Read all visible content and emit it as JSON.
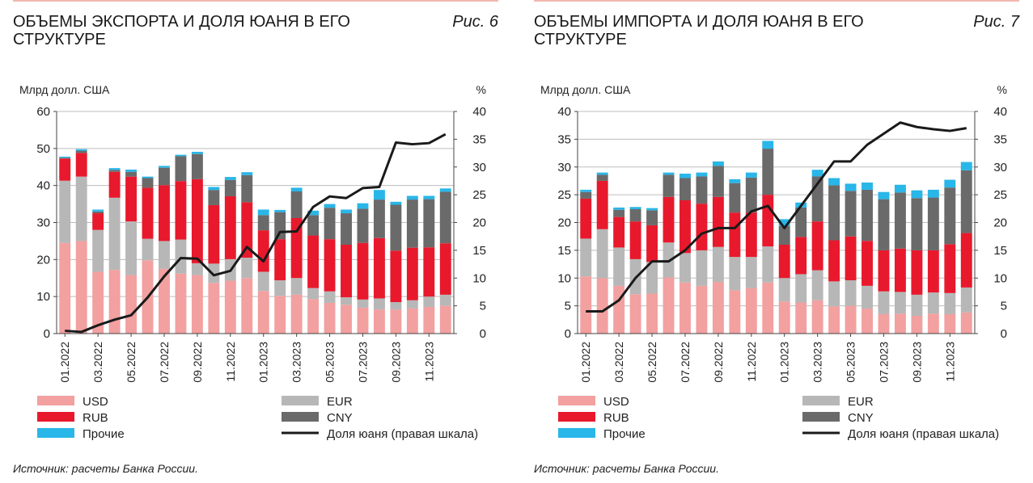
{
  "charts": [
    {
      "title": "ОБЪЕМЫ ЭКСПОРТА И ДОЛЯ ЮАНЯ В ЕГО СТРУКТУРЕ",
      "figure_label": "Рис. 6",
      "source": "Источник: расчеты Банка России.",
      "left_axis_label": "Млрд долл. США",
      "right_axis_label": "%",
      "legend": {
        "usd": "USD",
        "eur": "EUR",
        "rub": "RUB",
        "cny": "CNY",
        "other": "Прочие",
        "line": "Доля юаня (правая шкала)"
      }
    },
    {
      "title": "ОБЪЕМЫ ИМПОРТА И ДОЛЯ ЮАНЯ В ЕГО СТРУКТУРЕ",
      "figure_label": "Рис. 7",
      "source": "Источник: расчеты Банка России.",
      "left_axis_label": "Млрд долл. США",
      "right_axis_label": "%",
      "legend": {
        "usd": "USD",
        "eur": "EUR",
        "rub": "RUB",
        "cny": "CNY",
        "other": "Прочие",
        "line": "Доля юаня (правая шкала)"
      }
    }
  ],
  "chart_data": [
    {
      "type": "bar",
      "stacked": true,
      "title": "ОБЪЕМЫ ЭКСПОРТА И ДОЛЯ ЮАНЯ В ЕГО СТРУКТУРЕ",
      "ylabel": "Млрд долл. США",
      "y2label": "%",
      "ylim": [
        0,
        60
      ],
      "y2lim": [
        0,
        40
      ],
      "yticks": [
        0,
        10,
        20,
        30,
        40,
        50,
        60
      ],
      "y2ticks": [
        0,
        5,
        10,
        15,
        20,
        25,
        30,
        35,
        40
      ],
      "xtick_labels": [
        "01.2022",
        "03.2022",
        "05.2022",
        "07.2022",
        "09.2022",
        "11.2022",
        "01.2023",
        "03.2023",
        "05.2023",
        "07.2023",
        "09.2023",
        "11.2023"
      ],
      "categories": [
        "01.2022",
        "02.2022",
        "03.2022",
        "04.2022",
        "05.2022",
        "06.2022",
        "07.2022",
        "08.2022",
        "09.2022",
        "10.2022",
        "11.2022",
        "12.2022",
        "01.2023",
        "02.2023",
        "03.2023",
        "04.2023",
        "05.2023",
        "06.2023",
        "07.2023",
        "08.2023",
        "09.2023",
        "10.2023",
        "11.2023",
        "12.2023"
      ],
      "series": [
        {
          "name": "USD",
          "color": "#f2a0a0",
          "values": [
            24.5,
            25,
            16.7,
            17.2,
            15.8,
            19.8,
            17.5,
            16.2,
            15.8,
            13.7,
            14.3,
            15,
            11.5,
            10.2,
            10.5,
            9.3,
            8.3,
            7.8,
            7,
            6.5,
            6.5,
            6.8,
            7.2,
            7.5
          ]
        },
        {
          "name": "EUR",
          "color": "#b7b7b7",
          "values": [
            16.8,
            17.4,
            11.3,
            19.5,
            14.5,
            5.8,
            7.5,
            9.2,
            3.2,
            5.2,
            5.8,
            5.5,
            5.2,
            4.2,
            4.5,
            3,
            3.1,
            2,
            2.2,
            3,
            2,
            2.2,
            2.8,
            3
          ]
        },
        {
          "name": "RUB",
          "color": "#e8192c",
          "values": [
            6,
            6.4,
            4.5,
            7,
            12.1,
            13.8,
            15.1,
            15.8,
            22.7,
            15.8,
            17,
            15,
            11.2,
            11.1,
            16.2,
            14.2,
            14.1,
            14.2,
            15.3,
            16.3,
            13.9,
            14.2,
            13.3,
            13.9
          ]
        },
        {
          "name": "CNY",
          "color": "#6a6a6a",
          "values": [
            0.2,
            0.6,
            0.5,
            0.5,
            1.3,
            2.6,
            4.7,
            6.7,
            6.8,
            4.1,
            4.4,
            7.3,
            4.1,
            7.3,
            7.2,
            5.5,
            8.5,
            8.5,
            9.2,
            10.4,
            12.4,
            13,
            13,
            13.9
          ]
        },
        {
          "name": "Прочие",
          "color": "#29b6e8",
          "values": [
            0.3,
            0.4,
            0.5,
            0.5,
            0.6,
            0.4,
            0.5,
            0.4,
            0.6,
            0.8,
            0.8,
            0.8,
            1.5,
            0.6,
            1,
            1.2,
            1,
            1,
            1.5,
            2.6,
            0.8,
            1,
            0.9,
            0.9
          ]
        }
      ],
      "line": {
        "name": "Доля юаня (правая шкала)",
        "color": "#1a1a1a",
        "axis": "right",
        "values": [
          0.5,
          0.3,
          1.5,
          2.5,
          3.3,
          6.5,
          10.3,
          13.6,
          13.5,
          10.5,
          11.3,
          15.6,
          13,
          18.3,
          18.4,
          22.8,
          24.7,
          24.4,
          26.2,
          26.4,
          34.4,
          34.1,
          34.3,
          35.9
        ]
      }
    },
    {
      "type": "bar",
      "stacked": true,
      "title": "ОБЪЕМЫ ИМПОРТА И ДОЛЯ ЮАНЯ В ЕГО СТРУКТУРЕ",
      "ylabel": "Млрд долл. США",
      "y2label": "%",
      "ylim": [
        0,
        40
      ],
      "y2lim": [
        0,
        40
      ],
      "yticks": [
        0,
        5,
        10,
        15,
        20,
        25,
        30,
        35,
        40
      ],
      "y2ticks": [
        0,
        5,
        10,
        15,
        20,
        25,
        30,
        35,
        40
      ],
      "xtick_labels": [
        "01.2022",
        "03.2022",
        "05.2022",
        "07.2022",
        "09.2022",
        "11.2022",
        "01.2023",
        "03.2023",
        "05.2023",
        "07.2023",
        "09.2023",
        "11.2023"
      ],
      "categories": [
        "01.2022",
        "02.2022",
        "03.2022",
        "04.2022",
        "05.2022",
        "06.2022",
        "07.2022",
        "08.2022",
        "09.2022",
        "10.2022",
        "11.2022",
        "12.2022",
        "01.2023",
        "02.2023",
        "03.2023",
        "04.2023",
        "05.2023",
        "06.2023",
        "07.2023",
        "08.2023",
        "09.2023",
        "10.2023",
        "11.2023",
        "12.2023"
      ],
      "series": [
        {
          "name": "USD",
          "color": "#f2a0a0",
          "values": [
            10.3,
            10,
            8.6,
            7.1,
            7.2,
            10.1,
            9.2,
            8.6,
            9.3,
            7.8,
            8.2,
            9.2,
            5.8,
            5.6,
            6,
            4.9,
            5,
            4.5,
            3.5,
            3.6,
            3.2,
            3.6,
            3.5,
            3.8
          ]
        },
        {
          "name": "EUR",
          "color": "#b7b7b7",
          "values": [
            6.8,
            8.8,
            6.9,
            6.3,
            5.7,
            6.3,
            5.3,
            6.4,
            6.3,
            6,
            5.6,
            6.5,
            4.2,
            5.1,
            5.4,
            4.5,
            4.6,
            4.1,
            4.1,
            3.9,
            3.8,
            3.8,
            3.8,
            4.5
          ]
        },
        {
          "name": "RUB",
          "color": "#e8192c",
          "values": [
            7.2,
            8.7,
            5.5,
            6.8,
            6.6,
            8.2,
            9.5,
            8.4,
            9,
            8,
            8,
            9.3,
            6,
            6.7,
            8.8,
            7.4,
            7.9,
            8.1,
            7.4,
            7.8,
            8,
            7.6,
            8.8,
            9.8
          ]
        },
        {
          "name": "CNY",
          "color": "#6a6a6a",
          "values": [
            1.2,
            1.1,
            1.3,
            2.2,
            2.7,
            4,
            4,
            4.9,
            5.6,
            5.3,
            6.3,
            8.3,
            3.4,
            5.3,
            8.1,
            9.9,
            8.2,
            9.2,
            9.2,
            10.1,
            9.4,
            9.5,
            10.2,
            11.3
          ]
        },
        {
          "name": "Прочие",
          "color": "#29b6e8",
          "values": [
            0.4,
            0.4,
            0.4,
            0.4,
            0.4,
            0.4,
            0.8,
            0.7,
            0.8,
            0.7,
            0.9,
            1.4,
            1.2,
            0.9,
            1.2,
            1.3,
            1.3,
            1.3,
            1.3,
            1.4,
            1.4,
            1.4,
            1.4,
            1.5
          ]
        }
      ],
      "line": {
        "name": "Доля юаня (правая шкала)",
        "color": "#1a1a1a",
        "axis": "right",
        "values": [
          4,
          4,
          6,
          10,
          13,
          13,
          15,
          18,
          19,
          19,
          22,
          23,
          19,
          23,
          27,
          31,
          31,
          34,
          36,
          38,
          37.2,
          36.8,
          36.5,
          37
        ]
      }
    }
  ]
}
